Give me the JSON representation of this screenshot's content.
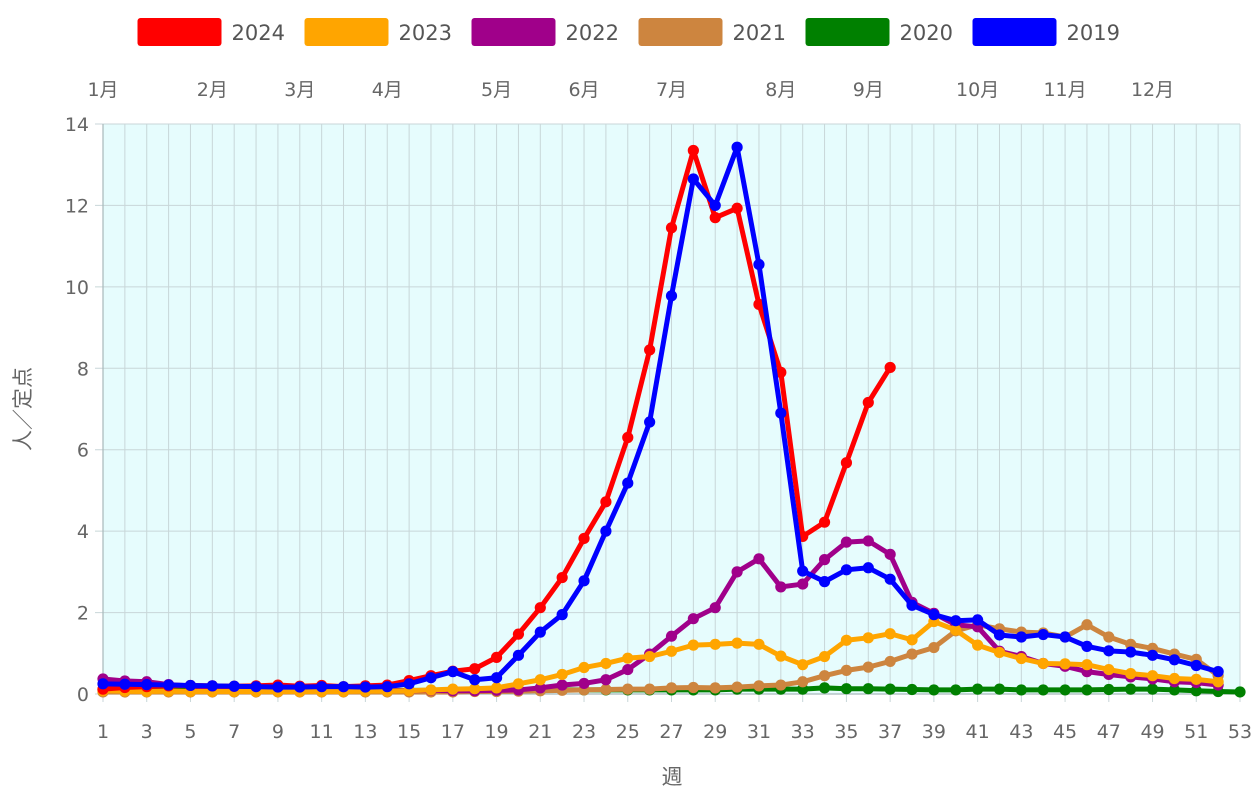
{
  "chart_data": {
    "type": "line",
    "xlabel": "週",
    "ylabel": "人／定点",
    "xlim": [
      1,
      53
    ],
    "ylim": [
      0,
      14
    ],
    "x_ticks": [
      1,
      3,
      5,
      7,
      9,
      11,
      13,
      15,
      17,
      19,
      21,
      23,
      25,
      27,
      29,
      31,
      33,
      35,
      37,
      39,
      41,
      43,
      45,
      47,
      49,
      51,
      53
    ],
    "y_ticks": [
      0,
      2,
      4,
      6,
      8,
      10,
      12,
      14
    ],
    "grid": true,
    "legend_position": "top",
    "background_color": "#e6fcfd",
    "month_labels": [
      {
        "label": "1月",
        "week": 1
      },
      {
        "label": "2月",
        "week": 6
      },
      {
        "label": "3月",
        "week": 10
      },
      {
        "label": "4月",
        "week": 14
      },
      {
        "label": "5月",
        "week": 19
      },
      {
        "label": "6月",
        "week": 23
      },
      {
        "label": "7月",
        "week": 27
      },
      {
        "label": "8月",
        "week": 32
      },
      {
        "label": "9月",
        "week": 36
      },
      {
        "label": "10月",
        "week": 41
      },
      {
        "label": "11月",
        "week": 45
      },
      {
        "label": "12月",
        "week": 49
      }
    ],
    "series": [
      {
        "name": "2019",
        "color": "#0000ff",
        "values": [
          0.25,
          0.24,
          0.23,
          0.22,
          0.21,
          0.2,
          0.19,
          0.18,
          0.17,
          0.17,
          0.18,
          0.18,
          0.17,
          0.18,
          0.25,
          0.4,
          0.55,
          0.35,
          0.4,
          0.95,
          1.52,
          1.95,
          2.78,
          4.0,
          5.18,
          6.68,
          9.78,
          12.65,
          12.0,
          13.43,
          10.55,
          6.9,
          3.02,
          2.76,
          3.05,
          3.1,
          2.82,
          2.18,
          1.95,
          1.8,
          1.82,
          1.45,
          1.4,
          1.46,
          1.4,
          1.17,
          1.06,
          1.03,
          0.95,
          0.84,
          0.7,
          0.55
        ]
      },
      {
        "name": "2024",
        "color": "#ff0000",
        "values": [
          0.12,
          0.16,
          0.18,
          0.2,
          0.21,
          0.2,
          0.19,
          0.2,
          0.22,
          0.19,
          0.21,
          0.18,
          0.2,
          0.22,
          0.33,
          0.45,
          0.56,
          0.62,
          0.9,
          1.47,
          2.12,
          2.86,
          3.82,
          4.72,
          6.3,
          8.45,
          11.45,
          13.35,
          11.7,
          11.93,
          9.57,
          7.9,
          3.87,
          4.22,
          5.68,
          7.16,
          8.02
        ]
      },
      {
        "name": "2023",
        "color": "#ffa500",
        "values": [
          0.08,
          0.07,
          0.06,
          0.07,
          0.06,
          0.06,
          0.06,
          0.06,
          0.06,
          0.06,
          0.06,
          0.06,
          0.07,
          0.07,
          0.08,
          0.1,
          0.12,
          0.13,
          0.15,
          0.25,
          0.35,
          0.48,
          0.65,
          0.75,
          0.88,
          0.92,
          1.05,
          1.2,
          1.22,
          1.25,
          1.22,
          0.93,
          0.72,
          0.92,
          1.32,
          1.38,
          1.48,
          1.33,
          1.78,
          1.57,
          1.2,
          1.02,
          0.87,
          0.75,
          0.74,
          0.72,
          0.6,
          0.5,
          0.45,
          0.38,
          0.36,
          0.3
        ]
      },
      {
        "name": "2022",
        "color": "#a0008a",
        "values": [
          0.37,
          0.32,
          0.3,
          0.23,
          0.2,
          0.16,
          0.14,
          0.12,
          0.11,
          0.1,
          0.1,
          0.1,
          0.09,
          0.09,
          0.08,
          0.09,
          0.08,
          0.08,
          0.09,
          0.1,
          0.15,
          0.22,
          0.26,
          0.35,
          0.6,
          0.98,
          1.42,
          1.85,
          2.12,
          3.0,
          3.32,
          2.63,
          2.7,
          3.3,
          3.73,
          3.76,
          3.43,
          2.25,
          1.98,
          1.7,
          1.65,
          1.05,
          0.92,
          0.75,
          0.68,
          0.55,
          0.48,
          0.42,
          0.37,
          0.3,
          0.28,
          0.22
        ]
      },
      {
        "name": "2021",
        "color": "#cd853f",
        "values": [
          0.05,
          0.05,
          0.05,
          0.05,
          0.05,
          0.05,
          0.05,
          0.05,
          0.05,
          0.05,
          0.05,
          0.05,
          0.05,
          0.05,
          0.05,
          0.05,
          0.05,
          0.06,
          0.06,
          0.07,
          0.08,
          0.09,
          0.1,
          0.11,
          0.12,
          0.12,
          0.15,
          0.16,
          0.15,
          0.17,
          0.2,
          0.22,
          0.3,
          0.45,
          0.58,
          0.66,
          0.8,
          0.98,
          1.14,
          1.55,
          1.7,
          1.6,
          1.52,
          1.5,
          1.4,
          1.7,
          1.4,
          1.22,
          1.12,
          0.98,
          0.85,
          0.45
        ]
      },
      {
        "name": "2020",
        "color": "#008000",
        "values": [
          0.1,
          0.1,
          0.1,
          0.1,
          0.1,
          0.1,
          0.1,
          0.1,
          0.1,
          0.09,
          0.09,
          0.09,
          0.09,
          0.09,
          0.09,
          0.09,
          0.09,
          0.09,
          0.09,
          0.09,
          0.09,
          0.1,
          0.1,
          0.1,
          0.1,
          0.1,
          0.1,
          0.1,
          0.1,
          0.12,
          0.12,
          0.12,
          0.12,
          0.15,
          0.13,
          0.13,
          0.12,
          0.11,
          0.1,
          0.1,
          0.12,
          0.12,
          0.1,
          0.1,
          0.1,
          0.1,
          0.11,
          0.12,
          0.12,
          0.1,
          0.08,
          0.06,
          0.05
        ]
      }
    ],
    "legend_order": [
      "2024",
      "2023",
      "2022",
      "2021",
      "2020",
      "2019"
    ]
  }
}
